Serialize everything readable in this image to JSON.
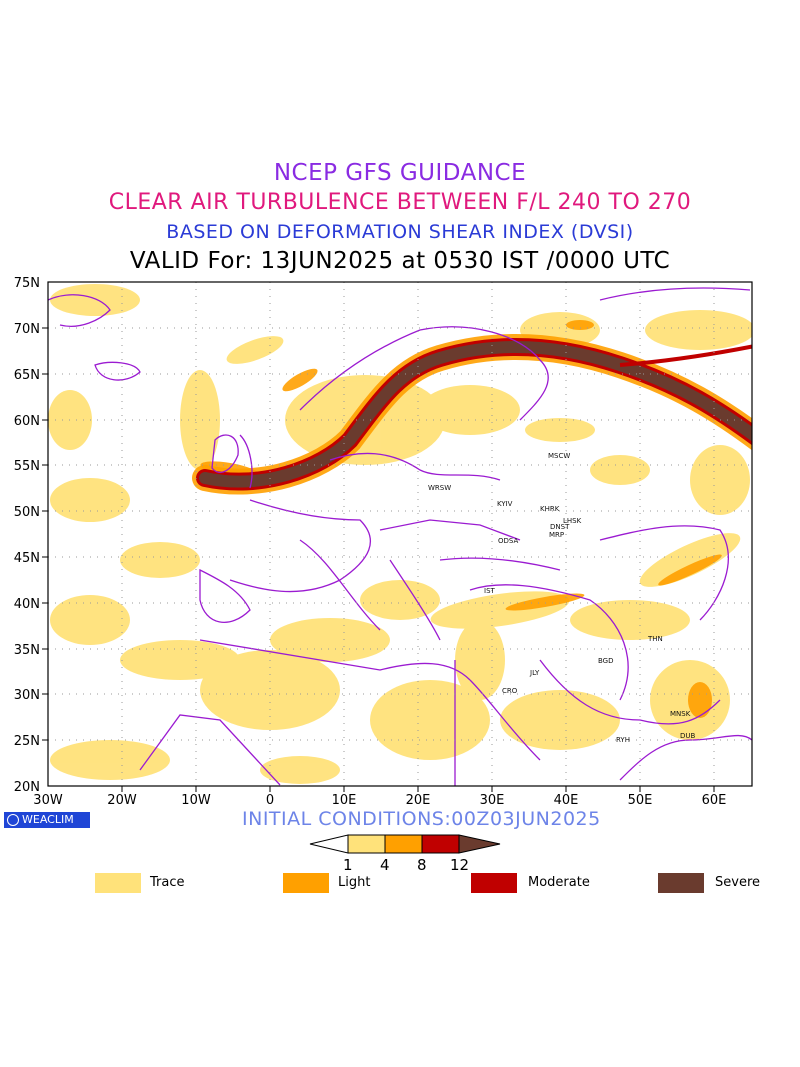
{
  "header": {
    "title1": "NCEP GFS GUIDANCE",
    "title2": "CLEAR AIR TURBULENCE BETWEEN F/L 240 TO 270",
    "title3": "BASED ON DEFORMATION SHEAR INDEX (DVSI)",
    "title4": "VALID For: 13JUN2025 at 0530 IST /0000 UTC"
  },
  "map": {
    "lat_labels": [
      "75N",
      "70N",
      "65N",
      "60N",
      "55N",
      "50N",
      "45N",
      "40N",
      "35N",
      "30N",
      "25N",
      "20N"
    ],
    "lon_labels": [
      "30W",
      "20W",
      "10W",
      "0",
      "10E",
      "20E",
      "30E",
      "40E",
      "50E",
      "60E"
    ],
    "cities": [
      {
        "name": "MSCW"
      },
      {
        "name": "WRSW"
      },
      {
        "name": "KYIV"
      },
      {
        "name": "KHRK"
      },
      {
        "name": "LHSK"
      },
      {
        "name": "DNST"
      },
      {
        "name": "MRP"
      },
      {
        "name": "ODSA"
      },
      {
        "name": "IST"
      },
      {
        "name": "THN"
      },
      {
        "name": "BGD"
      },
      {
        "name": "JLY"
      },
      {
        "name": "CRO"
      },
      {
        "name": "MNSK"
      },
      {
        "name": "DUB"
      },
      {
        "name": "RYH"
      }
    ]
  },
  "footer": {
    "logo": "WEACLIM",
    "initial_conditions": "INITIAL CONDITIONS:00Z03JUN2025",
    "scale_values": [
      "1",
      "4",
      "8",
      "12"
    ]
  },
  "legend": {
    "items": [
      {
        "label": "Trace",
        "color": "#ffe27a"
      },
      {
        "label": "Light",
        "color": "#ffa000"
      },
      {
        "label": "Moderate",
        "color": "#c00000"
      },
      {
        "label": "Severe",
        "color": "#6a3b2e"
      }
    ]
  },
  "colors": {
    "trace": "#ffe27a",
    "light": "#ffa000",
    "moderate": "#c00000",
    "severe": "#6a3b2e",
    "boundary": "#9b1bd1"
  }
}
